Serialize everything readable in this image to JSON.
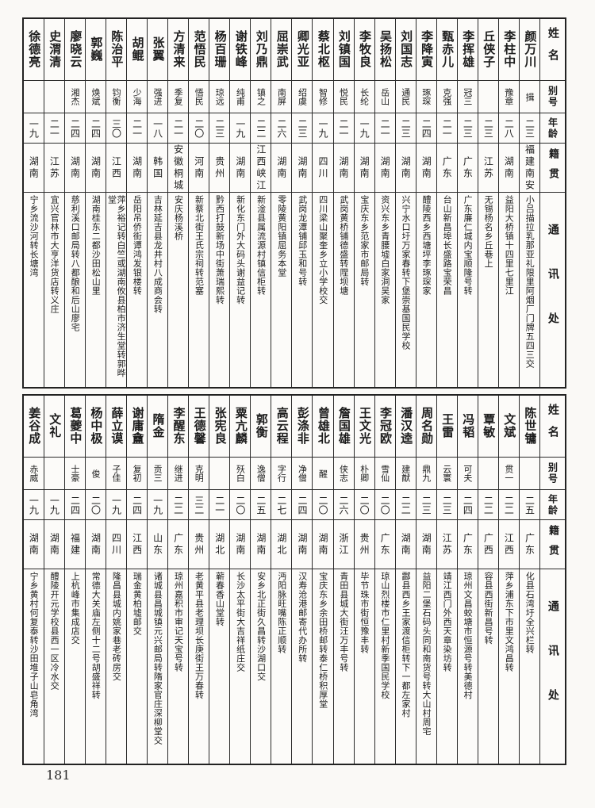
{
  "page": {
    "number": "181"
  },
  "headers": {
    "name": "姓名",
    "alias": "别号",
    "age": "年龄",
    "native_place": "籍贯",
    "contact": "通讯处"
  },
  "tables": [
    {
      "people": [
        {
          "name": "颜万川",
          "alias": "揖",
          "age": "二三",
          "native": "福建南安",
          "contact": "小吕描拉乳那亚礼限里阿烟厂门牌五四三交"
        },
        {
          "name": "李柱中",
          "alias": "豫章",
          "age": "二八",
          "native": "湖南",
          "contact": "益阳大桥镇十四里七里江"
        },
        {
          "name": "丘侠子",
          "alias": "",
          "age": "二三",
          "native": "江苏",
          "contact": "无锡杨名乡丘巷上"
        },
        {
          "name": "李挥雄",
          "alias": "冠三",
          "age": "二三",
          "native": "广东",
          "contact": "广东廉仁城内宝顺隆号转"
        },
        {
          "name": "甄赤儿",
          "alias": "克强",
          "age": "二一",
          "native": "广东",
          "contact": "台山新昌埠长盛路宝荣昌"
        },
        {
          "name": "李降寅",
          "alias": "琢琛",
          "age": "二四",
          "native": "湖南",
          "contact": "醴陵西乡西塘坪李琢琛家"
        },
        {
          "name": "刘国志",
          "alias": "通民",
          "age": "二三",
          "native": "湖南",
          "contact": "兴宁水口圩万家春转下堡崇基国民学校"
        },
        {
          "name": "吴扬松",
          "alias": "岳山",
          "age": "二一",
          "native": "湖南",
          "contact": "资兴东乡青腰墟白家洞吴家"
        },
        {
          "name": "李牧良",
          "alias": "长纶",
          "age": "一九",
          "native": "湖南",
          "contact": "宝庆东乡范家市邮局转"
        },
        {
          "name": "刘镇国",
          "alias": "悦民",
          "age": "二一",
          "native": "湖南",
          "contact": "武岗黄桥铺德盛转陧坝塘"
        },
        {
          "name": "蔡北枢",
          "alias": "智修",
          "age": "一九",
          "native": "四川",
          "contact": "四川梁山聚奎乡立小学校交"
        },
        {
          "name": "卿光亚",
          "alias": "绍虞",
          "age": "二三",
          "native": "湖南",
          "contact": "武岗龙潭铺邱玉和号转"
        },
        {
          "name": "屈崇武",
          "alias": "南屏",
          "age": "二六",
          "native": "湖南",
          "contact": "零陵黄阳镇屈务本堂"
        },
        {
          "name": "刘乃鼎",
          "alias": "镇之",
          "age": "二二",
          "native": "江西峡江",
          "contact": "新淦县属流源村镇信柜转"
        },
        {
          "name": "谢铁峰",
          "alias": "纯甫",
          "age": "一九",
          "native": "湖南",
          "contact": "新化东门外大码头谢益记转"
        },
        {
          "name": "杨百珊",
          "alias": "琼远",
          "age": "二三",
          "native": "贵州",
          "contact": "黔西打鼓新场中街萧瑞熙转"
        },
        {
          "name": "范悟民",
          "alias": "悟民",
          "age": "二〇",
          "native": "河南",
          "contact": "新蔡北街王氏宗祠转范塞"
        },
        {
          "name": "方清来",
          "alias": "季复",
          "age": "二一",
          "native": "安徽桐城",
          "contact": "安庆杨溪桥"
        },
        {
          "name": "张翼",
          "alias": "强进",
          "age": "一八",
          "native": "韩国",
          "contact": "吉林延吉县龙井村八成商会转"
        },
        {
          "name": "胡鲲",
          "alias": "少海",
          "age": "二一",
          "native": "湖南",
          "contact": "岳阳吊侨街谭鸿发银楼转"
        },
        {
          "name": "陈治平",
          "alias": "钧衡",
          "age": "三〇",
          "native": "江西",
          "contact": "萍乡裕记转白竺或湖南攸县柏市济生堂转郭晔堂"
        },
        {
          "name": "郭巍",
          "alias": "焕斌",
          "age": "二四",
          "native": "湖南",
          "contact": "湖南桂东二都沙田松山里"
        },
        {
          "name": "廖晓云",
          "alias": "湘杰",
          "age": "二四",
          "native": "湖南",
          "contact": "慈利溪口邮局转八都酿和后山廖宅"
        },
        {
          "name": "史渭清",
          "alias": "",
          "age": "二一",
          "native": "江苏",
          "contact": "宜兴官林市大亨洋货店转义庄"
        },
        {
          "name": "徐德亮",
          "alias": "",
          "age": "一九",
          "native": "湖南",
          "contact": "宁乡流沙河转长塘湾"
        }
      ]
    },
    {
      "people": [
        {
          "name": "陈世镛",
          "alias": "",
          "age": "二五",
          "native": "广东",
          "contact": "化县石湾圩全兴栏转"
        },
        {
          "name": "文斌",
          "alias": "贯一",
          "age": "二二",
          "native": "江西",
          "contact": "萍乡浦东下市里文鸿昌转"
        },
        {
          "name": "覃敏",
          "alias": "",
          "age": "二二",
          "native": "广西",
          "contact": "容县西街新昌号转"
        },
        {
          "name": "冯韬",
          "alias": "可夫",
          "age": "二四",
          "native": "广东",
          "contact": "琼州文昌蛟塘市恒源号转美德村"
        },
        {
          "name": "王雷",
          "alias": "云寰",
          "age": "二三",
          "native": "江苏",
          "contact": "靖江西门外西天章染坊转"
        },
        {
          "name": "周名勋",
          "alias": "鼎九",
          "age": "二三",
          "native": "湖南",
          "contact": "益阳二堡石码头同和南货号转大山村周宅"
        },
        {
          "name": "潘汉逵",
          "alias": "建猷",
          "age": "二二",
          "native": "湖南",
          "contact": "酃县西乡王家渡信柜转下一都左家村"
        },
        {
          "name": "李冠欧",
          "alias": "雪仙",
          "age": "二〇",
          "native": "广东",
          "contact": "琼山烈楼市仁里村新季国民学校"
        },
        {
          "name": "王文光",
          "alias": "朴卿",
          "age": "二〇",
          "native": "贵州",
          "contact": "毕节珠市街恒豫丰转"
        },
        {
          "name": "詹国雄",
          "alias": "侠志",
          "age": "二六",
          "native": "浙江",
          "contact": "青田县城大街汪万丰号转"
        },
        {
          "name": "曾雄北",
          "alias": "醒",
          "age": "二〇",
          "native": "湖南",
          "contact": "宝庆东乡余田桥邮转泰仁桥积厚堂"
        },
        {
          "name": "彭涤非",
          "alias": "净僧",
          "age": "二四",
          "native": "湖南",
          "contact": "汉寿沧港邮寄代办所转"
        },
        {
          "name": "高云程",
          "alias": "字行",
          "age": "二七",
          "native": "湖北",
          "contact": "沔阳脉旺嘴陈正顺转"
        },
        {
          "name": "郭衡",
          "alias": "逸僧",
          "age": "二五",
          "native": "湖南",
          "contact": "安乡北正街久昌转沙湖口交"
        },
        {
          "name": "粟亢麟",
          "alias": "殀白",
          "age": "二〇",
          "native": "湖南",
          "contact": "长沙太平街大吉祥纸庄交"
        },
        {
          "name": "张宪良",
          "alias": "",
          "age": "二一",
          "native": "湖北",
          "contact": "蕲春香山堂转"
        },
        {
          "name": "王德馨",
          "alias": "克明",
          "age": "三二",
          "native": "贵州",
          "contact": "老黄平县老理坝长庚街王万春转"
        },
        {
          "name": "李醒东",
          "alias": "继进",
          "age": "二二",
          "native": "广东",
          "contact": "琼州嘉积市审记天宝号转"
        },
        {
          "name": "隋金",
          "alias": "贡三",
          "age": "一九",
          "native": "山东",
          "contact": "诸城县昌城镇元兴邮局转隋家官庄深柳堂交"
        },
        {
          "name": "谢庸盦",
          "alias": "复初",
          "age": "二四",
          "native": "江西",
          "contact": "瑞金黄柏墟邮交"
        },
        {
          "name": "薛立谟",
          "alias": "子佳",
          "age": "一九",
          "native": "四川",
          "contact": "隆昌县城内姚家巷老砖房交"
        },
        {
          "name": "杨中极",
          "alias": "俊",
          "age": "二〇",
          "native": "湖南",
          "contact": "常德大关庙左侧十二号胡盛祥转"
        },
        {
          "name": "葛夔中",
          "alias": "士豪",
          "age": "二四",
          "native": "福建",
          "contact": "上杭峰市集成店交"
        },
        {
          "name": "文礼",
          "alias": "",
          "age": "一九",
          "native": "湖南",
          "contact": "醴陵开元学校县西一区冷水交"
        },
        {
          "name": "姜谷成",
          "alias": "赤威",
          "age": "一九",
          "native": "湖南",
          "contact": "宁乡黄村何复泰转沙田堆子山皂角湾"
        }
      ]
    }
  ]
}
